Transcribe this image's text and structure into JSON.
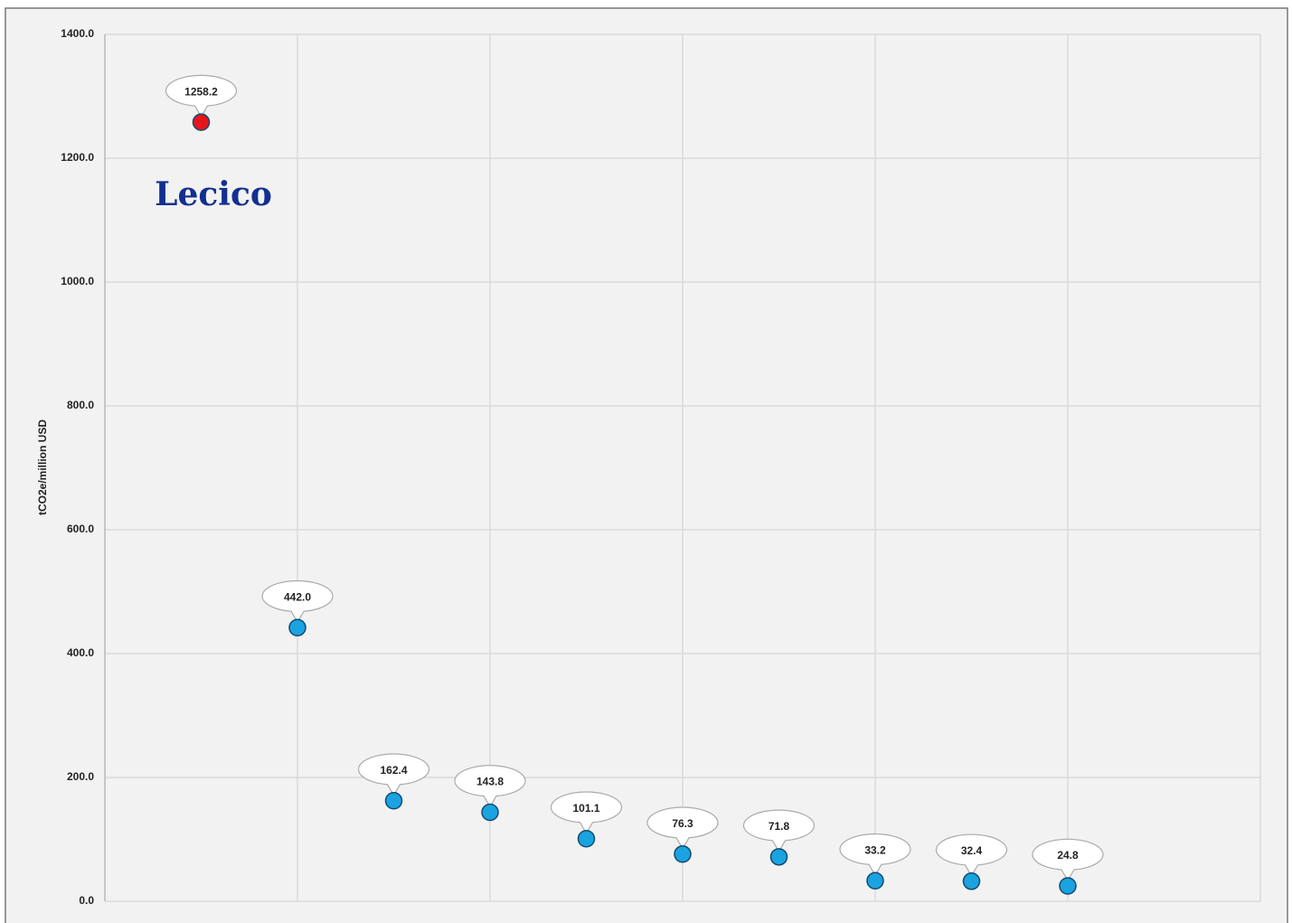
{
  "chart_data": {
    "type": "scatter",
    "y_label": "tCO2e/million USD",
    "logo": "Lecico",
    "x": [
      1,
      2,
      3,
      4,
      5,
      6,
      7,
      8,
      9,
      10
    ],
    "values": [
      1258.2,
      442.0,
      162.4,
      143.8,
      101.1,
      76.3,
      71.8,
      33.2,
      32.4,
      24.8
    ],
    "value_labels": [
      "1258.2",
      "442.0",
      "162.4",
      "143.8",
      "101.1",
      "76.3",
      "71.8",
      "33.2",
      "32.4",
      "24.8"
    ],
    "colors": [
      "#e8141c",
      "#1aa3e0",
      "#1aa3e0",
      "#1aa3e0",
      "#1aa3e0",
      "#1aa3e0",
      "#1aa3e0",
      "#1aa3e0",
      "#1aa3e0",
      "#1aa3e0"
    ],
    "xlim": [
      0,
      12
    ],
    "xticks": [
      0,
      2,
      4,
      6,
      8,
      10,
      12
    ],
    "ylim": [
      0,
      1400
    ],
    "yticks": [
      {
        "value": 0,
        "label": "0.0"
      },
      {
        "value": 200,
        "label": "200.0"
      },
      {
        "value": 400,
        "label": "400.0"
      },
      {
        "value": 600,
        "label": "600.0"
      },
      {
        "value": 800,
        "label": "800.0"
      },
      {
        "value": 1000,
        "label": "1000.0"
      },
      {
        "value": 1200,
        "label": "1200.0"
      },
      {
        "value": 1400,
        "label": "1400.0"
      }
    ],
    "grid": true
  }
}
